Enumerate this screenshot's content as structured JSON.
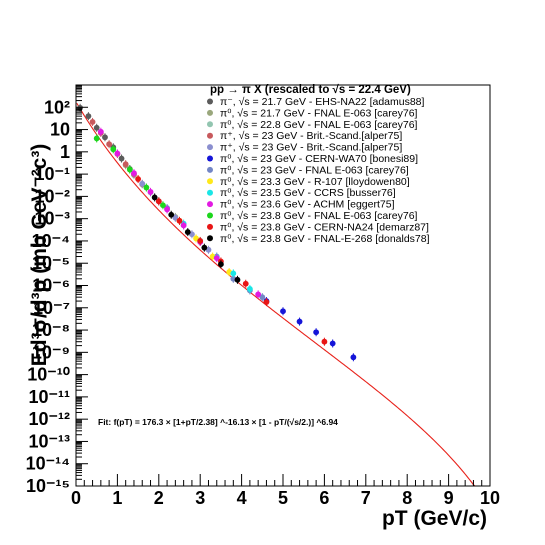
{
  "chart_data": {
    "type": "scatter",
    "title": "pp → π X (rescaled to √s = 22.4 GeV)",
    "xlabel": "pT (GeV/c)",
    "ylabel": "Ed³σ/d³p (mb GeV⁻²c³)",
    "xlim": [
      0,
      10
    ],
    "ylim": [
      1e-15,
      1000
    ],
    "yscale": "log",
    "grid": false,
    "legend_position": "top-right",
    "x_ticks": [
      "0",
      "1",
      "2",
      "3",
      "4",
      "5",
      "6",
      "7",
      "8",
      "9",
      "10"
    ],
    "y_ticks": [
      "10⁻¹⁵",
      "10⁻¹⁴",
      "10⁻¹³",
      "10⁻¹²",
      "10⁻¹¹",
      "10⁻¹⁰",
      "10⁻⁹",
      "10⁻⁸",
      "10⁻⁷",
      "10⁻⁶",
      "10⁻⁵",
      "10⁻⁴",
      "10⁻³",
      "10⁻²",
      "10⁻¹",
      "1",
      "10",
      "10²"
    ],
    "fit": {
      "label": "Fit: f(pT) = 176.3 × [1+pT/2.38] ^-16.13 × [1 - pT/(√s/2.)] ^6.94",
      "A": 176.3,
      "p0": 2.38,
      "n": 16.13,
      "m": 6.94,
      "sqrt_s": 22.4,
      "color": "#e8221b"
    },
    "series": [
      {
        "name": "π⁻, √s = 21.7 GeV - EHS-NA22 [adamus88]",
        "color": "#5b5b5b",
        "points": [
          {
            "x": 0.1,
            "y": 95
          },
          {
            "x": 0.3,
            "y": 40
          },
          {
            "x": 0.5,
            "y": 12
          },
          {
            "x": 0.7,
            "y": 4.5
          },
          {
            "x": 0.9,
            "y": 1.6
          },
          {
            "x": 1.1,
            "y": 0.5
          },
          {
            "x": 1.3,
            "y": 0.17
          }
        ]
      },
      {
        "name": "π⁰, √s = 21.7 GeV - FNAL E-063 [carey76]",
        "color": "#9aa77c",
        "points": [
          {
            "x": 1.2,
            "y": 0.25
          },
          {
            "x": 1.6,
            "y": 0.035
          },
          {
            "x": 2.0,
            "y": 0.006
          },
          {
            "x": 2.4,
            "y": 0.0012
          }
        ]
      },
      {
        "name": "π⁰, √s = 22.8 GeV - FNAL E-063 [carey76]",
        "color": "#92c5b0",
        "points": [
          {
            "x": 1.4,
            "y": 0.09
          },
          {
            "x": 1.8,
            "y": 0.015
          },
          {
            "x": 2.2,
            "y": 0.0028
          }
        ]
      },
      {
        "name": "π⁺, √s = 23 GeV - Brit.-Scand.[alper75]",
        "color": "#c7595c",
        "points": [
          {
            "x": 0.4,
            "y": 22
          },
          {
            "x": 0.6,
            "y": 7
          },
          {
            "x": 0.8,
            "y": 2.2
          },
          {
            "x": 1.0,
            "y": 0.8
          },
          {
            "x": 1.2,
            "y": 0.28
          },
          {
            "x": 1.4,
            "y": 0.1
          },
          {
            "x": 1.6,
            "y": 0.036
          }
        ]
      },
      {
        "name": "π⁺, √s = 23 GeV - Brit.-Scand.[alper75]",
        "color": "#8b8fcf",
        "points": [
          {
            "x": 1.6,
            "y": 0.037
          },
          {
            "x": 2.0,
            "y": 0.006
          },
          {
            "x": 2.4,
            "y": 0.0011
          },
          {
            "x": 2.8,
            "y": 0.0002
          },
          {
            "x": 3.2,
            "y": 4e-05
          }
        ]
      },
      {
        "name": "π⁰, √s = 23 GeV - CERN-WA70 [bonesi89]",
        "color": "#1515d8",
        "points": [
          {
            "x": 4.6,
            "y": 2e-07
          },
          {
            "x": 5.0,
            "y": 7e-08
          },
          {
            "x": 5.4,
            "y": 2.4e-08
          },
          {
            "x": 5.8,
            "y": 8e-09
          },
          {
            "x": 6.2,
            "y": 2.5e-09
          },
          {
            "x": 6.7,
            "y": 6e-10
          }
        ]
      },
      {
        "name": "π⁰, √s = 23 GeV - FNAL E-063 [carey76]",
        "color": "#7386c6",
        "points": [
          {
            "x": 2.2,
            "y": 0.003
          },
          {
            "x": 2.6,
            "y": 0.0005
          },
          {
            "x": 3.0,
            "y": 9e-05
          },
          {
            "x": 3.4,
            "y": 2e-05
          },
          {
            "x": 3.8,
            "y": 2e-06
          },
          {
            "x": 4.2,
            "y": 6e-07
          },
          {
            "x": 4.5,
            "y": 3e-07
          }
        ]
      },
      {
        "name": "π⁰, √s = 23.3 GeV - R-107 [lloydowen80]",
        "color": "#ffe81a",
        "points": [
          {
            "x": 2.5,
            "y": 0.0008
          },
          {
            "x": 2.9,
            "y": 0.00013
          },
          {
            "x": 3.3,
            "y": 2e-05
          },
          {
            "x": 3.7,
            "y": 4e-06
          }
        ]
      },
      {
        "name": "π⁰, √s = 23.5 GeV - CCRS [busser76]",
        "color": "#19e6e6",
        "points": [
          {
            "x": 2.6,
            "y": 0.0006
          },
          {
            "x": 3.0,
            "y": 0.0001
          },
          {
            "x": 3.4,
            "y": 1.8e-05
          },
          {
            "x": 3.8,
            "y": 3.5e-06
          },
          {
            "x": 4.2,
            "y": 7e-07
          }
        ]
      },
      {
        "name": "π⁰, √s = 23.6 GeV - ACHM [eggert75]",
        "color": "#e21ae2",
        "points": [
          {
            "x": 0.6,
            "y": 8
          },
          {
            "x": 1.0,
            "y": 0.85
          },
          {
            "x": 1.4,
            "y": 0.11
          },
          {
            "x": 1.8,
            "y": 0.016
          },
          {
            "x": 2.2,
            "y": 0.0026
          },
          {
            "x": 2.6,
            "y": 0.0005
          },
          {
            "x": 3.0,
            "y": 9e-05
          },
          {
            "x": 3.4,
            "y": 1.7e-05
          },
          {
            "x": 4.4,
            "y": 4e-07
          }
        ]
      },
      {
        "name": "π⁰, √s = 23.8 GeV - FNAL E-063 [carey76]",
        "color": "#1dd61d",
        "points": [
          {
            "x": 0.5,
            "y": 4
          },
          {
            "x": 0.9,
            "y": 1.3
          },
          {
            "x": 1.3,
            "y": 0.16
          },
          {
            "x": 1.7,
            "y": 0.025
          },
          {
            "x": 2.1,
            "y": 0.004
          }
        ]
      },
      {
        "name": "π⁰, √s = 23.8 GeV - CERN-NA24 [demarz87]",
        "color": "#e81515",
        "points": [
          {
            "x": 1.5,
            "y": 0.06
          },
          {
            "x": 2.0,
            "y": 0.006
          },
          {
            "x": 2.5,
            "y": 0.0008
          },
          {
            "x": 3.0,
            "y": 0.0001
          },
          {
            "x": 3.5,
            "y": 1.2e-05
          },
          {
            "x": 4.1,
            "y": 1.2e-06
          },
          {
            "x": 4.6,
            "y": 1.8e-07
          },
          {
            "x": 6.0,
            "y": 3e-09
          }
        ]
      },
      {
        "name": "π⁰, √s = 23.8 GeV - FNAL-E-268 [donalds78]",
        "color": "#000000",
        "points": [
          {
            "x": 1.9,
            "y": 0.009
          },
          {
            "x": 2.3,
            "y": 0.0015
          },
          {
            "x": 2.7,
            "y": 0.00025
          },
          {
            "x": 3.1,
            "y": 5e-05
          },
          {
            "x": 3.5,
            "y": 9e-06
          },
          {
            "x": 3.9,
            "y": 1.8e-06
          }
        ]
      }
    ]
  }
}
